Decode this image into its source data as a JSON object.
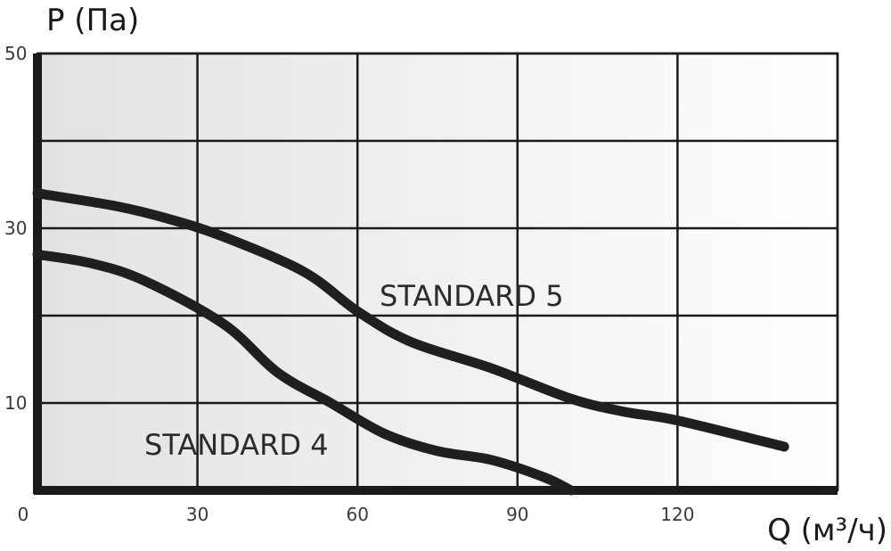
{
  "chart_data": {
    "type": "line",
    "ylabel": "P (Па)",
    "xlabel": "Q (м³/ч)",
    "xlim": [
      0,
      150
    ],
    "ylim": [
      0,
      50
    ],
    "x_ticks": [
      0,
      30,
      60,
      90,
      120
    ],
    "y_ticks": [
      10,
      30,
      50
    ],
    "x_gridlines": [
      0,
      30,
      60,
      90,
      120,
      150
    ],
    "y_gridlines": [
      0,
      10,
      20,
      30,
      40,
      50
    ],
    "grid": true,
    "legend": "none",
    "series": [
      {
        "name": "STANDARD 5",
        "points": [
          [
            0,
            34
          ],
          [
            15,
            32.5
          ],
          [
            25,
            31
          ],
          [
            35,
            29
          ],
          [
            50,
            25
          ],
          [
            60,
            20.5
          ],
          [
            70,
            17
          ],
          [
            85,
            14
          ],
          [
            100,
            10.5
          ],
          [
            110,
            9
          ],
          [
            120,
            8
          ],
          [
            140,
            5
          ]
        ]
      },
      {
        "name": "STANDARD 4",
        "points": [
          [
            0,
            27
          ],
          [
            10,
            26
          ],
          [
            20,
            24
          ],
          [
            35,
            19
          ],
          [
            45,
            13.5
          ],
          [
            55,
            10
          ],
          [
            65,
            6.5
          ],
          [
            75,
            4.5
          ],
          [
            85,
            3.5
          ],
          [
            95,
            1.5
          ],
          [
            100,
            0
          ]
        ]
      }
    ]
  }
}
